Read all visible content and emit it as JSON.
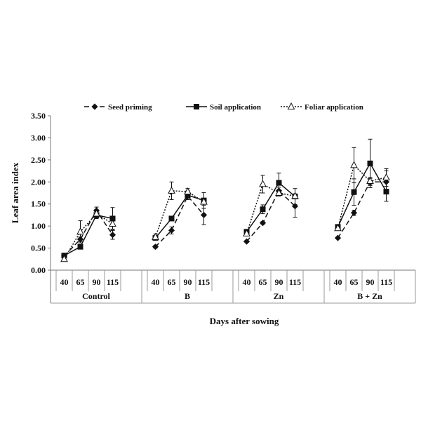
{
  "chart_data": {
    "type": "line",
    "title": "",
    "xlabel": "Days after sowing",
    "ylabel": "Leaf area index",
    "ylim": [
      0,
      3.5
    ],
    "yticks": [
      "0.00",
      "0.50",
      "1.00",
      "1.50",
      "2.00",
      "2.50",
      "3.00",
      "3.50"
    ],
    "grid": false,
    "legend_position": "top",
    "groups": [
      {
        "name": "Control",
        "x": [
          "40",
          "65",
          "90",
          "115"
        ]
      },
      {
        "name": "B",
        "x": [
          "40",
          "65",
          "90",
          "115"
        ]
      },
      {
        "name": "Zn",
        "x": [
          "40",
          "65",
          "90",
          "115"
        ]
      },
      {
        "name": "B + Zn",
        "x": [
          "40",
          "65",
          "90",
          "115"
        ]
      }
    ],
    "series": [
      {
        "name": "Seed priming",
        "style": "dashed",
        "marker": "diamond-filled",
        "groups": [
          {
            "values": [
              0.32,
              0.7,
              1.35,
              0.8
            ],
            "errors": [
              0.03,
              0.05,
              0.08,
              0.1
            ]
          },
          {
            "values": [
              0.53,
              0.9,
              1.68,
              1.25
            ],
            "errors": [
              0.03,
              0.08,
              0.08,
              0.22
            ]
          },
          {
            "values": [
              0.65,
              1.07,
              1.8,
              1.45
            ],
            "errors": [
              0.02,
              0.03,
              0.08,
              0.25
            ]
          },
          {
            "values": [
              0.73,
              1.3,
              2.0,
              2.0
            ],
            "errors": [
              0.02,
              0.06,
              0.08,
              0.25
            ]
          }
        ]
      },
      {
        "name": "Soil application",
        "style": "solid",
        "marker": "square-filled",
        "groups": [
          {
            "values": [
              0.33,
              0.53,
              1.25,
              1.17
            ],
            "errors": [
              0.03,
              0.03,
              0.08,
              0.25
            ]
          },
          {
            "values": [
              0.73,
              1.17,
              1.7,
              1.58
            ],
            "errors": [
              0.03,
              0.03,
              0.1,
              0.18
            ]
          },
          {
            "values": [
              0.87,
              1.38,
              1.98,
              1.67
            ],
            "errors": [
              0.03,
              0.1,
              0.22,
              0.18
            ]
          },
          {
            "values": [
              0.98,
              1.77,
              2.42,
              1.78
            ],
            "errors": [
              0.03,
              0.3,
              0.55,
              0.22
            ]
          }
        ]
      },
      {
        "name": "Foliar application",
        "style": "dotted",
        "marker": "triangle-open",
        "groups": [
          {
            "values": [
              0.25,
              0.87,
              1.28,
              1.05
            ],
            "errors": [
              0.05,
              0.25,
              0.1,
              0.12
            ]
          },
          {
            "values": [
              0.75,
              1.8,
              1.78,
              1.55
            ],
            "errors": [
              0.07,
              0.2,
              0.07,
              0.05
            ]
          },
          {
            "values": [
              0.83,
              1.95,
              1.75,
              1.68
            ],
            "errors": [
              0.03,
              0.2,
              0.07,
              0.05
            ]
          },
          {
            "values": [
              0.95,
              2.38,
              2.02,
              2.1
            ],
            "errors": [
              0.03,
              0.4,
              0.08,
              0.2
            ]
          }
        ]
      }
    ]
  }
}
